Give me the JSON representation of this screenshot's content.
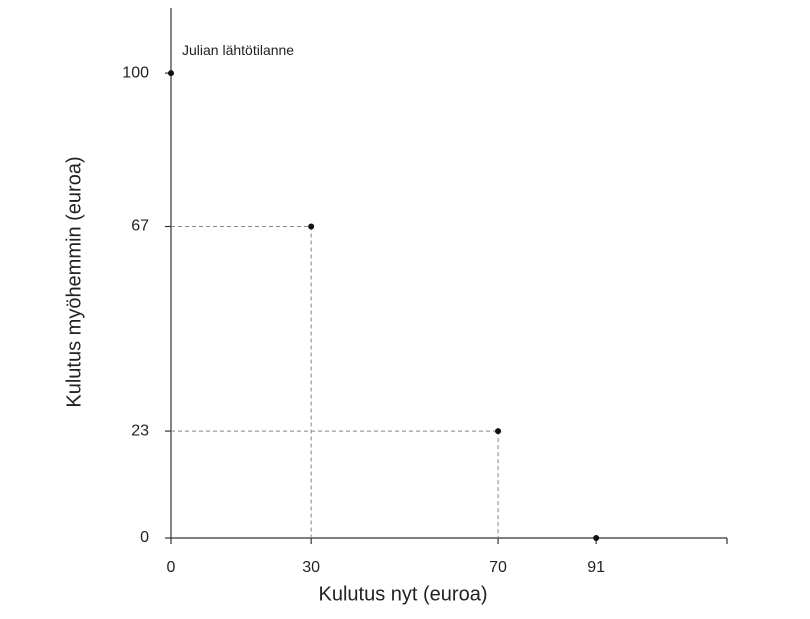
{
  "chart_data": {
    "type": "scatter",
    "x_label": "Kulutus nyt (euroa)",
    "y_label": "Kulutus myöhemmin (euroa)",
    "x": [
      0,
      30,
      70,
      91
    ],
    "series": [
      {
        "color": "#111111",
        "values": [
          100,
          67,
          23,
          0
        ]
      }
    ],
    "annotations": [
      {
        "text": "Julian lähtötilanne",
        "point": 0
      }
    ],
    "xlim": [
      0,
      119
    ],
    "ylim": [
      0,
      114
    ],
    "xticks": [
      0,
      30,
      70,
      91
    ],
    "yticks": [
      0,
      23,
      67,
      100
    ],
    "grid": false
  }
}
